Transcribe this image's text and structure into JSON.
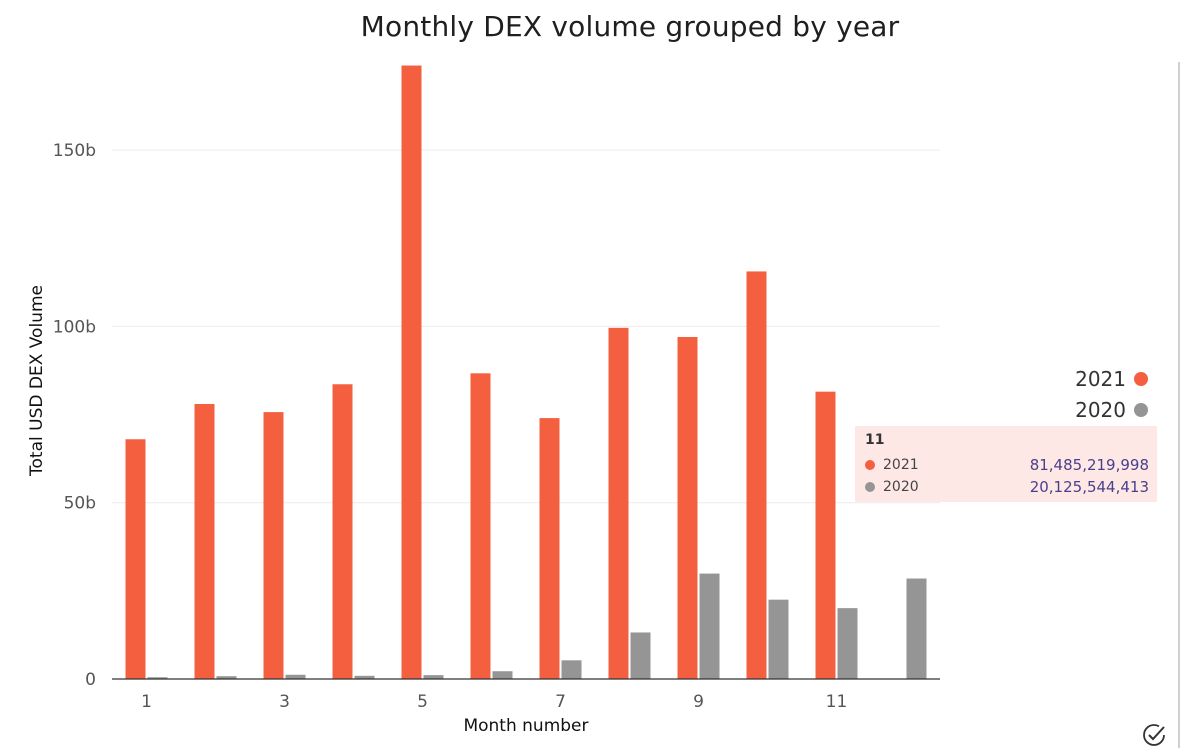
{
  "chart_data": {
    "type": "bar",
    "title": "Monthly DEX volume grouped by year",
    "xlabel": "Month number",
    "ylabel": "Total USD DEX Volume",
    "categories": [
      1,
      2,
      3,
      4,
      5,
      6,
      7,
      8,
      9,
      10,
      11,
      12
    ],
    "x_tick_labels": [
      "1",
      "3",
      "5",
      "7",
      "9",
      "11"
    ],
    "y_ticks": [
      0,
      50,
      100,
      150
    ],
    "y_tick_labels": [
      "0",
      "50b",
      "100b",
      "150b"
    ],
    "ylim": [
      0,
      175
    ],
    "grid": true,
    "legend_position": "right",
    "series": [
      {
        "name": "2021",
        "color": "#f4603f",
        "values": [
          68,
          78,
          75.7,
          83.6,
          174,
          86.7,
          74,
          99.6,
          97,
          115.6,
          81.5,
          null
        ]
      },
      {
        "name": "2020",
        "color": "#959595",
        "values": [
          0.5,
          0.8,
          1.2,
          0.9,
          1.1,
          2.2,
          5.3,
          13.2,
          29.9,
          22.5,
          20.1,
          28.5
        ]
      }
    ],
    "tooltip": {
      "title": "11",
      "rows": [
        {
          "name": "2021",
          "value": "81,485,219,998",
          "color": "#f4603f"
        },
        {
          "name": "2020",
          "value": "20,125,544,413",
          "color": "#959595"
        }
      ]
    }
  }
}
